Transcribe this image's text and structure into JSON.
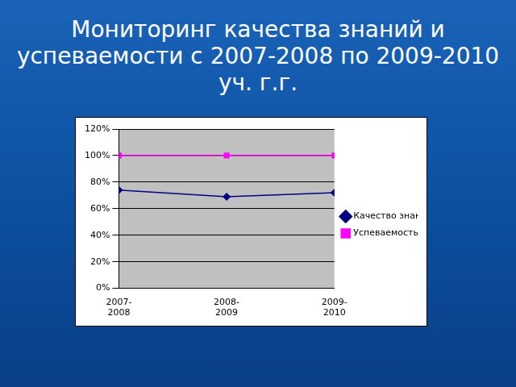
{
  "chart_data": {
    "type": "line",
    "title": "Мониторинг качества знаний и успеваемости с 2007-2008 по 2009-2010 уч. г.г.",
    "categories": [
      "2007-2008",
      "2008-2009",
      "2009-2010"
    ],
    "series": [
      {
        "name": "Качество знаний",
        "color": "#000080",
        "marker": "diamond",
        "values": [
          74,
          69,
          72
        ]
      },
      {
        "name": "Успеваемость",
        "color": "#ff00ff",
        "marker": "square",
        "values": [
          100,
          100,
          100
        ]
      }
    ],
    "ylim": [
      0,
      120
    ],
    "yticks": [
      {
        "value": 0,
        "label": "0%"
      },
      {
        "value": 20,
        "label": "20%"
      },
      {
        "value": 40,
        "label": "40%"
      },
      {
        "value": 60,
        "label": "60%"
      },
      {
        "value": 80,
        "label": "80%"
      },
      {
        "value": 100,
        "label": "100%"
      },
      {
        "value": 120,
        "label": "120%"
      }
    ],
    "grid": true,
    "legend": "right"
  }
}
